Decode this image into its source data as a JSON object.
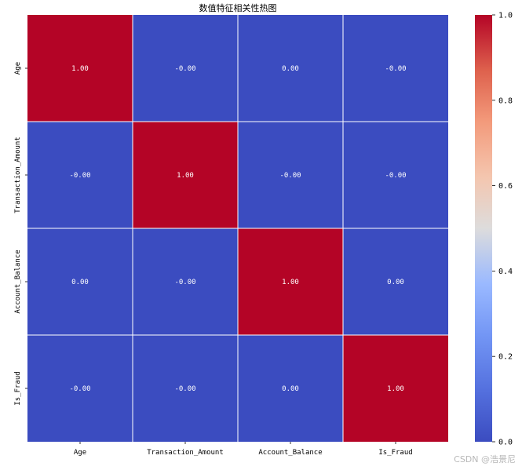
{
  "chart_data": {
    "type": "heatmap",
    "title": "数值特征相关性热图",
    "x_labels": [
      "Age",
      "Transaction_Amount",
      "Account_Balance",
      "Is_Fraud"
    ],
    "y_labels": [
      "Age",
      "Transaction_Amount",
      "Account_Balance",
      "Is_Fraud"
    ],
    "values": [
      [
        1.0,
        -0.0,
        0.0,
        -0.0
      ],
      [
        -0.0,
        1.0,
        -0.0,
        -0.0
      ],
      [
        0.0,
        -0.0,
        1.0,
        0.0
      ],
      [
        -0.0,
        -0.0,
        0.0,
        1.0
      ]
    ],
    "cell_labels": [
      [
        "1.00",
        "-0.00",
        "0.00",
        "-0.00"
      ],
      [
        "-0.00",
        "1.00",
        "-0.00",
        "-0.00"
      ],
      [
        "0.00",
        "-0.00",
        "1.00",
        "0.00"
      ],
      [
        "-0.00",
        "-0.00",
        "0.00",
        "1.00"
      ]
    ],
    "colormap": "coolwarm",
    "colorbar": {
      "range": [
        0.0,
        1.0
      ],
      "ticks": [
        "0.0",
        "0.2",
        "0.4",
        "0.6",
        "0.8",
        "1.0"
      ]
    },
    "grid_lines": true
  },
  "colors": {
    "low": "#3b4cc0",
    "high": "#b40426",
    "grid_line": "#ffffff",
    "annotation_text": "#ffffff"
  },
  "watermark": "CSDN @浩景尼"
}
